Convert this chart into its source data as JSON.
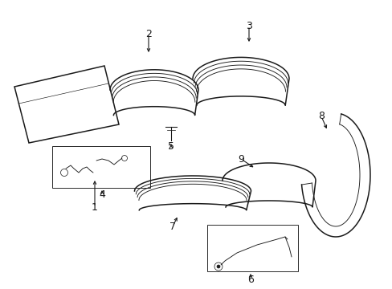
{
  "background_color": "#ffffff",
  "line_color": "#1a1a1a",
  "lw_thick": 1.1,
  "lw_thin": 0.65,
  "fig_w": 4.89,
  "fig_h": 3.6,
  "dpi": 100
}
